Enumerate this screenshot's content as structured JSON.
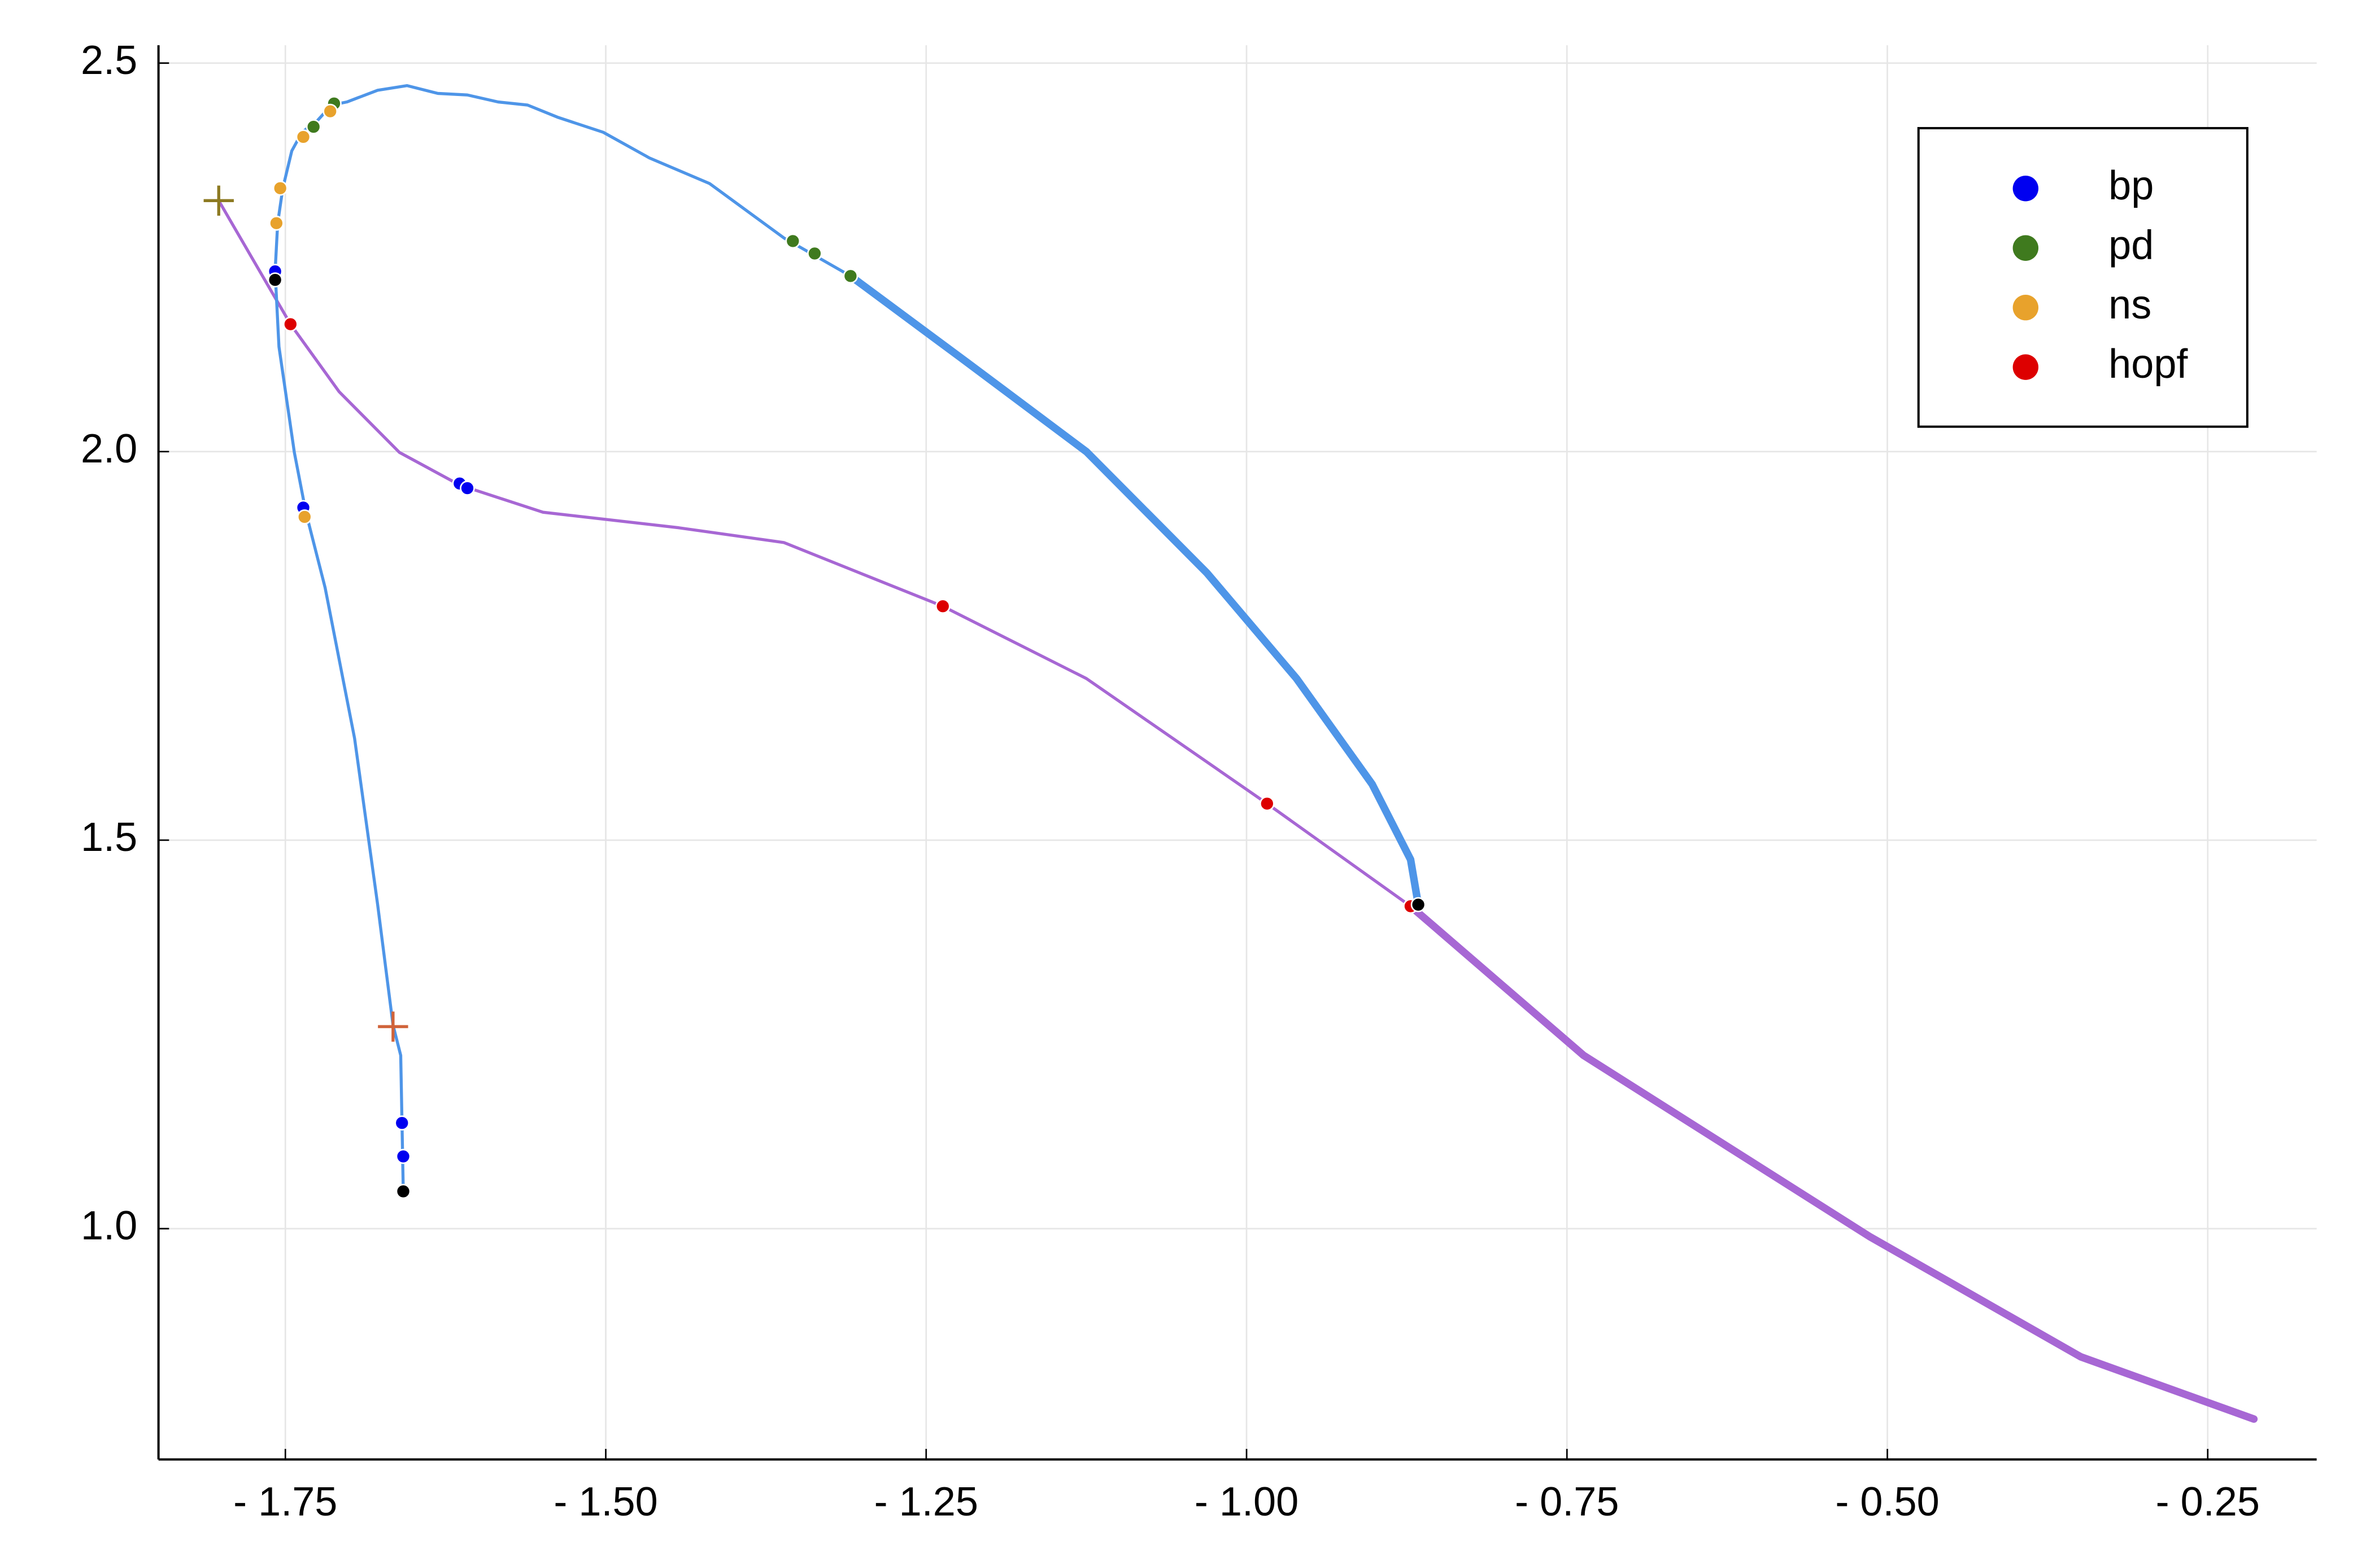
{
  "chart_data": {
    "type": "line",
    "xlim": [
      -1.849,
      -0.165
    ],
    "ylim": [
      0.703,
      2.523
    ],
    "xticks": [
      {
        "value": -1.75,
        "label": "- 1.75"
      },
      {
        "value": -1.5,
        "label": "- 1.50"
      },
      {
        "value": -1.25,
        "label": "- 1.25"
      },
      {
        "value": -1.0,
        "label": "- 1.00"
      },
      {
        "value": -0.75,
        "label": "- 0.75"
      },
      {
        "value": -0.5,
        "label": "- 0.50"
      },
      {
        "value": -0.25,
        "label": "- 0.25"
      }
    ],
    "yticks": [
      {
        "value": 1,
        "label": "1.0"
      },
      1.5,
      {
        "value": 2,
        "label": "2.0"
      },
      2.5
    ],
    "grid": true,
    "legend": "upper right",
    "series": [
      {
        "mode": "line",
        "color": "#a767d4",
        "width": 2,
        "x": [
          -1.802,
          -1.746,
          -1.708,
          -1.661,
          -1.614,
          -1.549,
          -1.443,
          -1.361,
          -1.237,
          -1.125,
          -0.984,
          -0.872
        ],
        "values": [
          2.323,
          2.164,
          2.077,
          1.999,
          1.957,
          1.922,
          1.902,
          1.883,
          1.801,
          1.708,
          1.547,
          1.415
        ]
      },
      {
        "mode": "line",
        "color": "#a767d4",
        "width": 5,
        "x": [
          -0.872,
          -0.737,
          -0.514,
          -0.349,
          -0.214
        ],
        "values": [
          1.415,
          1.223,
          0.99,
          0.835,
          0.755
        ]
      },
      {
        "mode": "line",
        "color": "#4e95e8",
        "width": 2,
        "x": [
          -1.658,
          -1.659,
          -1.66,
          -1.666,
          -1.678,
          -1.696,
          -1.719,
          -1.734,
          -1.743,
          -1.755,
          -1.758,
          -1.756,
          -1.752,
          -1.745,
          -1.737,
          -1.725,
          -1.714,
          -1.702,
          -1.678,
          -1.655,
          -1.631,
          -1.608,
          -1.584,
          -1.561,
          -1.537,
          -1.502,
          -1.466,
          -1.419,
          -1.361,
          -1.309
        ],
        "values": [
          1.048,
          1.136,
          1.223,
          1.262,
          1.417,
          1.631,
          1.825,
          1.922,
          1.999,
          2.135,
          2.232,
          2.294,
          2.339,
          2.387,
          2.411,
          2.426,
          2.446,
          2.45,
          2.465,
          2.471,
          2.461,
          2.459,
          2.45,
          2.446,
          2.43,
          2.411,
          2.378,
          2.345,
          2.275,
          2.226
        ]
      },
      {
        "mode": "line",
        "color": "#4e95e8",
        "width": 5,
        "x": [
          -1.309,
          -1.219,
          -1.125,
          -1.031,
          -0.961,
          -0.902,
          -0.872,
          -0.866
        ],
        "values": [
          2.226,
          2.116,
          2.0,
          1.844,
          1.708,
          1.572,
          1.475,
          1.417
        ]
      },
      {
        "mode": "marker",
        "name": "bp",
        "color": "#0000f0",
        "x": [
          -1.758,
          -1.736,
          -1.614,
          -1.608,
          -1.659,
          -1.658
        ],
        "values": [
          2.232,
          1.928,
          1.959,
          1.953,
          1.136,
          1.093
        ]
      },
      {
        "mode": "marker",
        "name": "pd",
        "color": "#3f7a1e",
        "x": [
          -1.712,
          -1.728,
          -1.354,
          -1.337,
          -1.309
        ],
        "values": [
          2.448,
          2.418,
          2.271,
          2.255,
          2.226
        ]
      },
      {
        "mode": "marker",
        "name": "ns",
        "color": "#e8a22c",
        "x": [
          -1.715,
          -1.736,
          -1.754,
          -1.757,
          -1.735
        ],
        "values": [
          2.438,
          2.405,
          2.339,
          2.294,
          1.916
        ]
      },
      {
        "mode": "marker",
        "name": "hopf",
        "color": "#dd0000",
        "x": [
          -1.746,
          -1.237,
          -0.984,
          -0.872
        ],
        "values": [
          2.164,
          1.801,
          1.547,
          1.415
        ]
      },
      {
        "mode": "marker",
        "color": "#000000",
        "x": [
          -1.758,
          -1.658,
          -0.866
        ],
        "values": [
          2.221,
          1.048,
          1.417
        ]
      },
      {
        "mode": "cross",
        "color": "#8d7a22",
        "x": [
          -1.802
        ],
        "values": [
          2.323
        ]
      },
      {
        "mode": "cross",
        "color": "#d0633a",
        "x": [
          -1.666
        ],
        "values": [
          1.26
        ]
      }
    ]
  }
}
